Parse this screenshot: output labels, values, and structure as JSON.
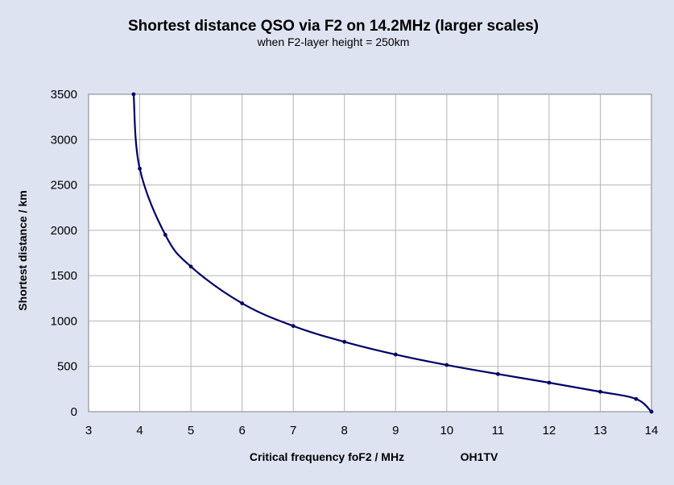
{
  "chart_data": {
    "type": "line",
    "title": "Shortest distance QSO via F2 on 14.2MHz  (larger scales)",
    "subtitle": "when F2-layer height = 250km",
    "xlabel": "Critical frequency foF2 / MHz",
    "credit": "OH1TV",
    "ylabel": "Shortest distance / km",
    "xlim": [
      3,
      14
    ],
    "ylim": [
      0,
      3500
    ],
    "x_ticks": [
      "3",
      "4",
      "5",
      "6",
      "7",
      "8",
      "9",
      "10",
      "11",
      "12",
      "13",
      "14"
    ],
    "y_ticks": [
      "0",
      "500",
      "1000",
      "1500",
      "2000",
      "2500",
      "3000",
      "3500"
    ],
    "grid": true,
    "series": [
      {
        "color": "#000066",
        "points": [
          {
            "x": 3.88,
            "y": 3500
          },
          {
            "x": 4.0,
            "y": 2680
          },
          {
            "x": 4.5,
            "y": 1950
          },
          {
            "x": 5.0,
            "y": 1600
          },
          {
            "x": 6.0,
            "y": 1195
          },
          {
            "x": 7.0,
            "y": 945
          },
          {
            "x": 8.0,
            "y": 770
          },
          {
            "x": 9.0,
            "y": 630
          },
          {
            "x": 10.0,
            "y": 515
          },
          {
            "x": 11.0,
            "y": 415
          },
          {
            "x": 12.0,
            "y": 320
          },
          {
            "x": 13.0,
            "y": 220
          },
          {
            "x": 13.7,
            "y": 140
          },
          {
            "x": 14.0,
            "y": 0
          }
        ]
      }
    ]
  }
}
